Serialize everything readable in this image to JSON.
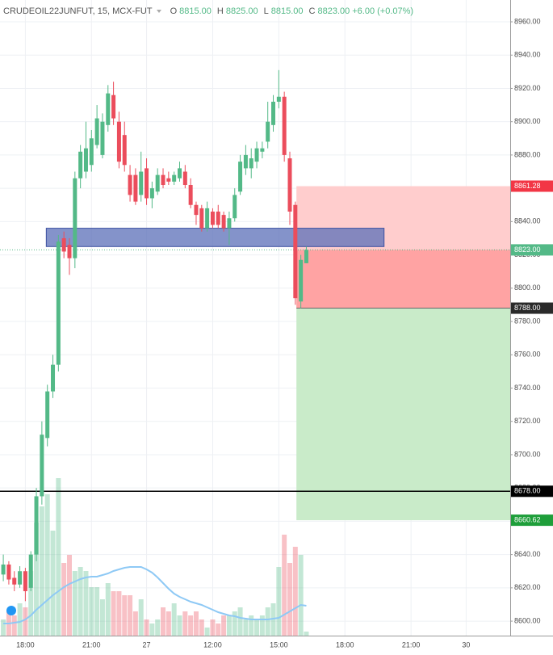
{
  "header": {
    "symbol": "CRUDEOIL22JUNFUT, 15, MCX-FUT",
    "fields": [
      {
        "key": "O",
        "value": {
          "value": 8815,
          "label": "8815.00"
        }
      },
      {
        "key": "H",
        "value": {
          "value": 8825,
          "label": "8825.00"
        }
      },
      {
        "key": "L",
        "value": {
          "value": 8815,
          "label": "8815.00"
        }
      },
      {
        "key": "C",
        "value": {
          "value": 8823,
          "label": "8823.00"
        }
      }
    ],
    "change": "+6.00 (+0.07%)"
  },
  "chart_data": {
    "type": "candlestick",
    "up_color": "#53b987",
    "down_color": "#eb4d5c",
    "open": [
      8628,
      8634,
      8626,
      8622,
      8630,
      8620,
      8640,
      8675,
      8710,
      8738,
      8754,
      8830,
      8826,
      8818,
      8866,
      8870,
      8874,
      8886,
      8880,
      8898,
      8916,
      8900,
      8892,
      8868,
      8868,
      8856,
      8872,
      8854,
      8858,
      8868,
      8866,
      8864,
      8866,
      8870,
      8862,
      8850,
      8848,
      8836,
      8846,
      8846,
      8844,
      8836,
      8842,
      8858,
      8872,
      8872,
      8876,
      8882,
      8888,
      8898,
      8912,
      8915,
      8878,
      8850,
      8792,
      8815
    ],
    "high": [
      8640,
      8636,
      8630,
      8633,
      8632,
      8642,
      8680,
      8720,
      8742,
      8760,
      8832,
      8834,
      8830,
      8870,
      8886,
      8900,
      8895,
      8910,
      8905,
      8922,
      8924,
      8906,
      8900,
      8874,
      8872,
      8882,
      8878,
      8864,
      8872,
      8872,
      8870,
      8870,
      8876,
      8874,
      8866,
      8852,
      8850,
      8852,
      8848,
      8850,
      8846,
      8846,
      8860,
      8880,
      8886,
      8884,
      8888,
      8888,
      8912,
      8916,
      8931,
      8918,
      8882,
      8852,
      8820,
      8825
    ],
    "low": [
      8624,
      8622,
      8618,
      8620,
      8612,
      8618,
      8636,
      8670,
      8705,
      8734,
      8750,
      8818,
      8808,
      8812,
      8860,
      8866,
      8870,
      8884,
      8878,
      8894,
      8898,
      8872,
      8870,
      8852,
      8850,
      8852,
      8850,
      8848,
      8856,
      8860,
      8862,
      8862,
      8864,
      8860,
      8848,
      8838,
      8834,
      8834,
      8836,
      8836,
      8834,
      8826,
      8840,
      8856,
      8868,
      8866,
      8872,
      8878,
      8884,
      8894,
      8908,
      8876,
      8838,
      8790,
      8788,
      8815
    ],
    "close": [
      8634,
      8625,
      8622,
      8630,
      8618,
      8640,
      8675,
      8712,
      8738,
      8754,
      8828,
      8822,
      8818,
      8866,
      8882,
      8884,
      8890,
      8902,
      8900,
      8917,
      8902,
      8876,
      8874,
      8856,
      8852,
      8870,
      8854,
      8860,
      8868,
      8862,
      8864,
      8868,
      8872,
      8862,
      8850,
      8844,
      8836,
      8848,
      8838,
      8838,
      8836,
      8842,
      8856,
      8876,
      8880,
      8878,
      8884,
      8884,
      8900,
      8912,
      8915,
      8880,
      8846,
      8794,
      8817,
      8823
    ],
    "volume": [
      20,
      30,
      25,
      40,
      35,
      80,
      140,
      160,
      175,
      130,
      195,
      90,
      100,
      80,
      85,
      80,
      60,
      60,
      45,
      65,
      55,
      55,
      50,
      50,
      30,
      45,
      20,
      15,
      20,
      35,
      30,
      40,
      25,
      30,
      25,
      30,
      20,
      10,
      20,
      15,
      25,
      25,
      30,
      35,
      20,
      25,
      20,
      25,
      35,
      40,
      85,
      125,
      90,
      110,
      100,
      5
    ],
    "volume_ma": [
      15,
      15,
      16,
      17,
      20,
      25,
      32,
      38,
      44,
      50,
      55,
      60,
      64,
      67,
      70,
      72,
      73,
      73,
      75,
      77,
      80,
      82,
      84,
      85,
      85,
      85,
      82,
      78,
      72,
      65,
      58,
      52,
      48,
      45,
      42,
      40,
      38,
      35,
      32,
      29,
      27,
      25,
      24,
      22,
      21,
      20,
      20,
      20,
      20,
      21,
      22,
      26,
      30,
      34,
      38,
      37
    ],
    "volume_ma_color": "#8ec9f5",
    "xlim": [
      -0.6,
      92
    ],
    "xticks": [
      {
        "value": 4,
        "label": "18:00"
      },
      {
        "value": 16,
        "label": "21:00"
      },
      {
        "value": 26,
        "label": "27"
      },
      {
        "value": 38,
        "label": "12:00"
      },
      {
        "value": 50,
        "label": "15:00"
      },
      {
        "value": 62,
        "label": "18:00"
      },
      {
        "value": 74,
        "label": "21:00"
      },
      {
        "value": 84,
        "label": "30"
      }
    ],
    "ylim": [
      8591.3,
      8973.1
    ],
    "yticks": [
      {
        "value": 8600,
        "label": "8600.00"
      },
      {
        "value": 8620,
        "label": "8620.00"
      },
      {
        "value": 8640,
        "label": "8640.00"
      },
      {
        "value": 8660,
        "label": "8660.00"
      },
      {
        "value": 8680,
        "label": "8680.00"
      },
      {
        "value": 8700,
        "label": "8700.00"
      },
      {
        "value": 8720,
        "label": "8720.00"
      },
      {
        "value": 8740,
        "label": "8740.00"
      },
      {
        "value": 8760,
        "label": "8760.00"
      },
      {
        "value": 8780,
        "label": "8780.00"
      },
      {
        "value": 8800,
        "label": "8800.00"
      },
      {
        "value": 8820,
        "label": "8820.00"
      },
      {
        "value": 8840,
        "label": "8840.00"
      },
      {
        "value": 8860,
        "label": "8860.00"
      },
      {
        "value": 8880,
        "label": "8880.00"
      },
      {
        "value": 8900,
        "label": "8900.00"
      },
      {
        "value": 8920,
        "label": "8920.00"
      },
      {
        "value": 8940,
        "label": "8940.00"
      },
      {
        "value": 8960,
        "label": "8960.00"
      }
    ],
    "grid": true,
    "zone": {
      "top": 8836,
      "bottom": 8825,
      "x": [
        7.8,
        69.1
      ],
      "color": "#5b6fb8"
    },
    "position": {
      "x_start": 53.2,
      "stop": {
        "value": 8861.28,
        "label": "8861.28",
        "color": "#f23645"
      },
      "entry": {
        "value": 8788,
        "label": "8788.00",
        "color": "#2a2a2a"
      },
      "target": {
        "value": 8660.62,
        "label": "8660.62",
        "color": "#1e9e3a"
      }
    },
    "last_price": {
      "value": 8823,
      "label": "8823.00",
      "color": "#53b987"
    },
    "horizontal_line": {
      "value": 8678,
      "label": "8678.00",
      "color": "#000000"
    }
  }
}
